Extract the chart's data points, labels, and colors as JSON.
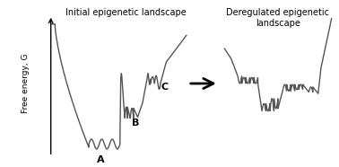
{
  "title_left": "Initial epigenetic landscape",
  "title_right": "Deregulated epigenetic\nlandscape",
  "ylabel": "Free energy, G",
  "label_A": "A",
  "label_B": "B",
  "label_C": "C",
  "bg_color": "#ffffff",
  "line_color": "#555555",
  "text_color": "#000000",
  "arrow_color": "#000000"
}
